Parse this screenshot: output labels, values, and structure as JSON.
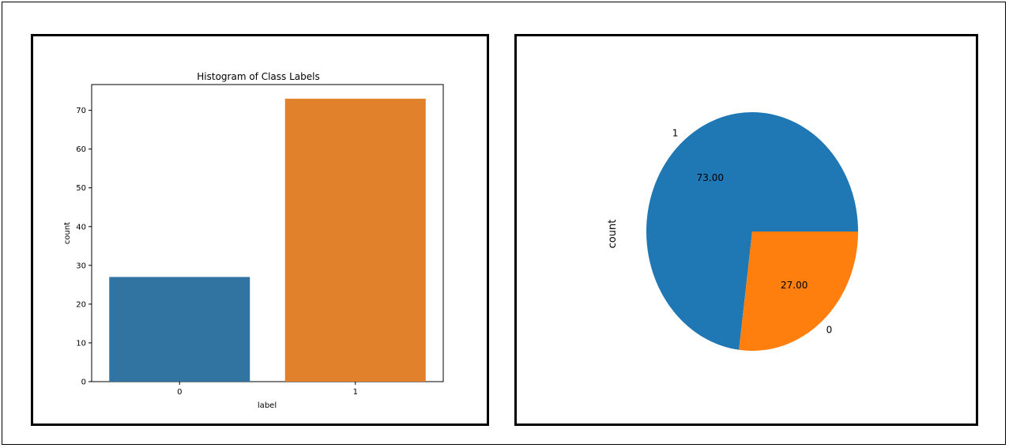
{
  "chart_data": [
    {
      "type": "bar",
      "title": "Histogram of Class Labels",
      "xlabel": "label",
      "ylabel": "count",
      "categories": [
        "0",
        "1"
      ],
      "values": [
        27,
        73
      ],
      "ylim": [
        0,
        76.65
      ],
      "yticks": [
        0,
        10,
        20,
        30,
        40,
        50,
        60,
        70
      ],
      "colors": [
        "#3274a1",
        "#e1812c"
      ],
      "grid": false
    },
    {
      "type": "pie",
      "ylabel": "count",
      "labels": [
        "1",
        "0"
      ],
      "values": [
        73,
        27
      ],
      "autopct": [
        "73.00",
        "27.00"
      ],
      "colors": [
        "#1f77b4",
        "#ff7f0e"
      ],
      "start_angle_deg": 0
    }
  ]
}
